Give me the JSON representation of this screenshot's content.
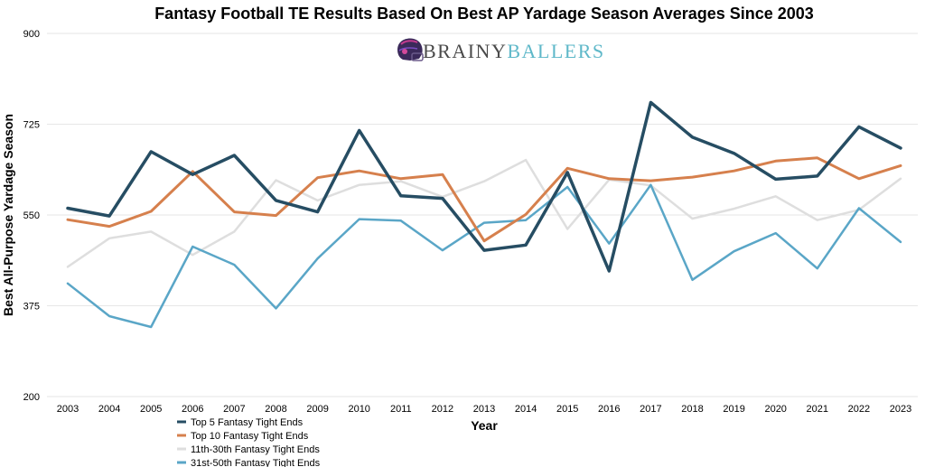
{
  "brand": {
    "part1": "BRAINY",
    "part2": "BALLERS",
    "color1": "#4a4a4a",
    "color2": "#5fb8c9",
    "logo_icon": "helmet-icon"
  },
  "chart_data": {
    "type": "line",
    "title": "Fantasy Football TE Results Based On Best AP Yardage Season Averages Since 2003",
    "xlabel": "Year",
    "ylabel": "Best All-Purpose Yardage Season",
    "ylim": [
      200,
      900
    ],
    "yticks": [
      "200",
      "375",
      "550",
      "725",
      "900"
    ],
    "categories": [
      "2003",
      "2004",
      "2005",
      "2006",
      "2007",
      "2008",
      "2009",
      "2010",
      "2011",
      "2012",
      "2013",
      "2014",
      "2015",
      "2016",
      "2017",
      "2018",
      "2019",
      "2020",
      "2021",
      "2022",
      "2023"
    ],
    "legend_position": "bottom-left",
    "grid": true,
    "series": [
      {
        "name": "Top 5 Fantasy Tight Ends",
        "color": "#264d63",
        "width": 3.5,
        "values": [
          563,
          548,
          672,
          628,
          665,
          578,
          556,
          713,
          587,
          582,
          482,
          492,
          632,
          442,
          767,
          700,
          669,
          619,
          625,
          720,
          679
        ]
      },
      {
        "name": "Top 10 Fantasy Tight Ends",
        "color": "#d6804d",
        "width": 3,
        "values": [
          541,
          528,
          557,
          634,
          556,
          549,
          622,
          635,
          620,
          628,
          500,
          551,
          640,
          620,
          616,
          623,
          635,
          654,
          660,
          620,
          645
        ]
      },
      {
        "name": "11th-30th Fantasy Tight Ends",
        "color": "#dedede",
        "width": 2.5,
        "values": [
          450,
          505,
          518,
          473,
          518,
          617,
          578,
          608,
          615,
          585,
          615,
          656,
          523,
          618,
          607,
          543,
          562,
          586,
          540,
          560,
          620
        ]
      },
      {
        "name": "31st-50th Fantasy Tight Ends",
        "color": "#5aa6c7",
        "width": 2.5,
        "values": [
          418,
          355,
          334,
          489,
          454,
          370,
          466,
          542,
          539,
          482,
          535,
          540,
          604,
          495,
          608,
          425,
          480,
          515,
          447,
          563,
          498
        ]
      }
    ]
  }
}
